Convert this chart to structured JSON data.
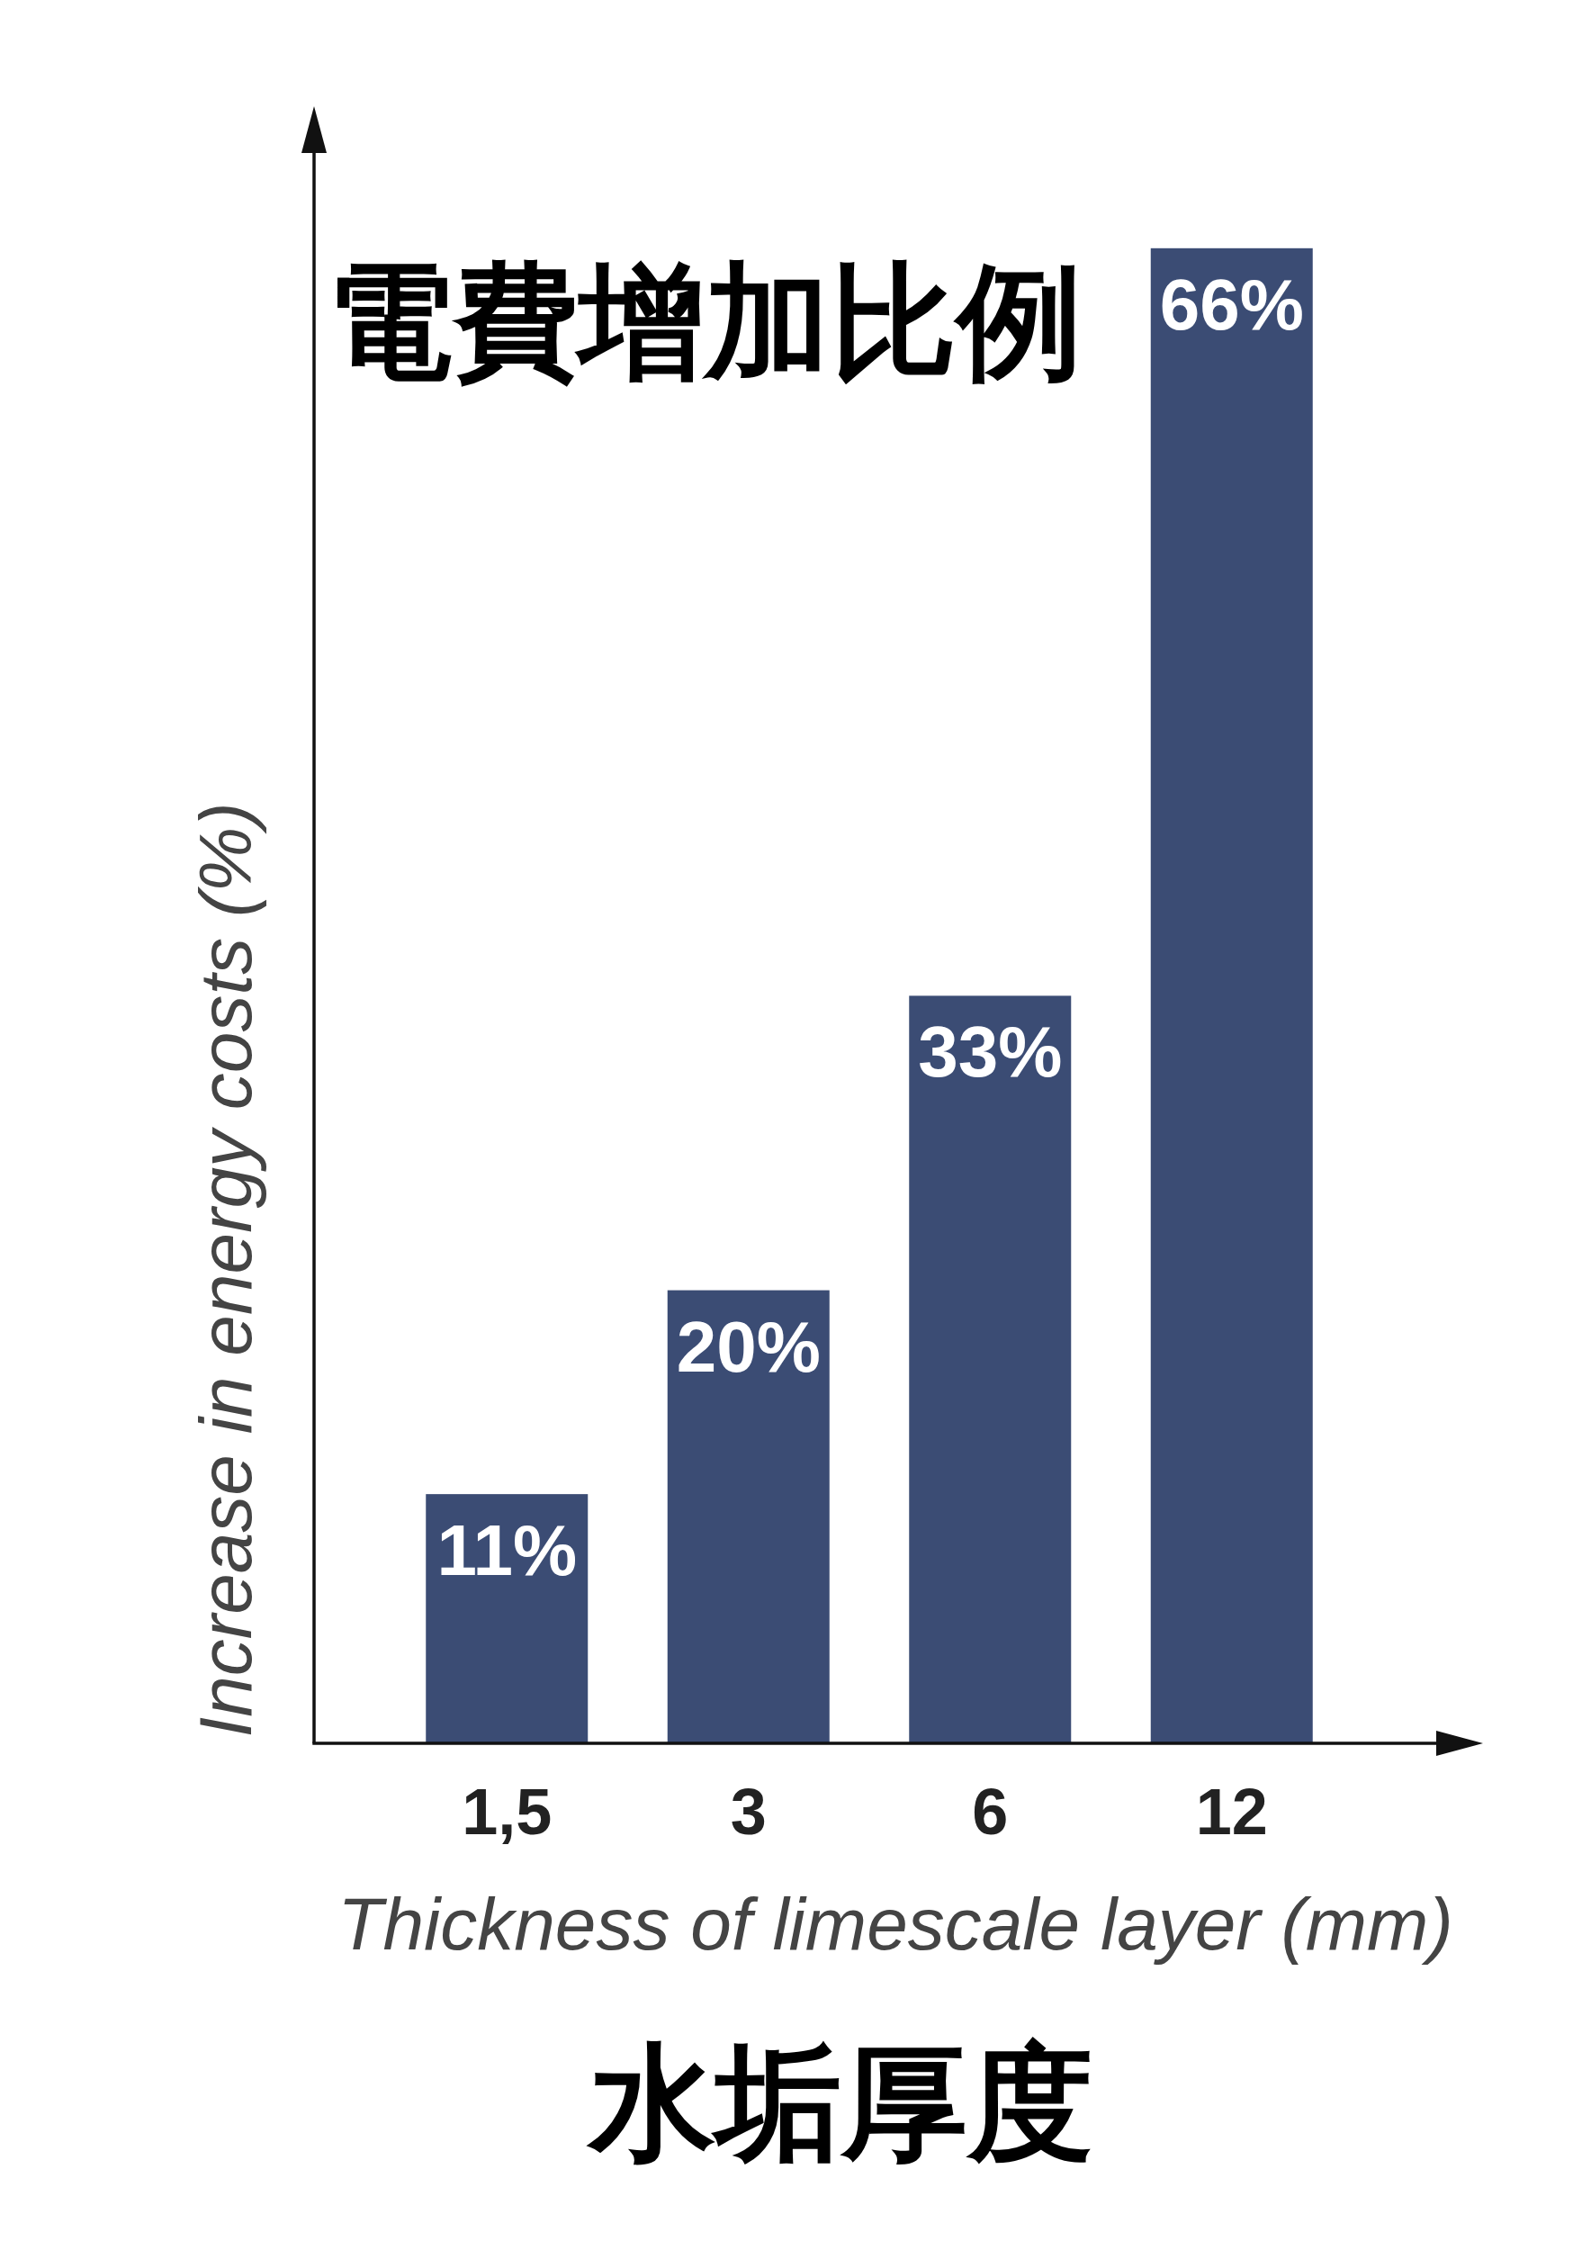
{
  "chart_data": {
    "type": "bar",
    "title": "電費增加比例",
    "xlabel": "Thickness of limescale layer (mm)",
    "ylabel": "Increase in energy costs (%)",
    "categories": [
      "1,5",
      "3",
      "6",
      "12"
    ],
    "values": [
      11,
      20,
      33,
      66
    ],
    "color": "#3b4c74",
    "value_labels": [
      "11%",
      "20%",
      "33%",
      "66%"
    ],
    "annotations": [
      "水垢厚度"
    ]
  }
}
